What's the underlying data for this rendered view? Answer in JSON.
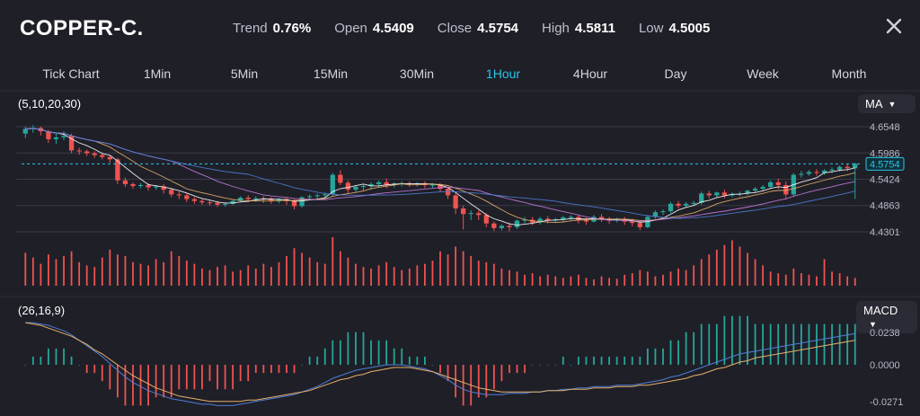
{
  "header": {
    "symbol": "COPPER-C.",
    "stats": [
      {
        "label": "Trend",
        "value": "0.76%"
      },
      {
        "label": "Open",
        "value": "4.5409"
      },
      {
        "label": "Close",
        "value": "4.5754"
      },
      {
        "label": "High",
        "value": "4.5811"
      },
      {
        "label": "Low",
        "value": "4.5005"
      }
    ],
    "close_icon": "close-icon"
  },
  "timeframes": [
    "Tick Chart",
    "1Min",
    "5Min",
    "15Min",
    "30Min",
    "1Hour",
    "4Hour",
    "Day",
    "Week",
    "Month"
  ],
  "active_timeframe": "1Hour",
  "main_indicator": {
    "params": "(5,10,20,30)",
    "selected": "MA"
  },
  "sub_indicator": {
    "params": "(26,16,9)",
    "selected": "MACD"
  },
  "colors": {
    "up": "#26a69a",
    "down": "#ef5350",
    "accent": "#2bc4e8",
    "macd_line": "#4e7fd6",
    "signal_line": "#e6b06b"
  },
  "chart_data": [
    {
      "type": "candlestick",
      "price_axis_ticks": [
        "4.6548",
        "4.5986",
        "4.5424",
        "4.4863",
        "4.4301"
      ],
      "ylim": [
        4.4301,
        4.6548
      ],
      "current_price": "4.5754",
      "ma_periods": [
        5,
        10,
        20,
        30
      ],
      "candles": [
        [
          4.64,
          4.655,
          4.65,
          4.63
        ],
        [
          4.65,
          4.658,
          4.652,
          4.642
        ],
        [
          4.652,
          4.655,
          4.645,
          4.636
        ],
        [
          4.645,
          4.648,
          4.628,
          4.62
        ],
        [
          4.628,
          4.64,
          4.632,
          4.618
        ],
        [
          4.632,
          4.645,
          4.635,
          4.626
        ],
        [
          4.635,
          4.64,
          4.604,
          4.598
        ],
        [
          4.604,
          4.61,
          4.602,
          4.595
        ],
        [
          4.602,
          4.606,
          4.598,
          4.592
        ],
        [
          4.598,
          4.602,
          4.594,
          4.588
        ],
        [
          4.594,
          4.598,
          4.59,
          4.585
        ],
        [
          4.59,
          4.594,
          4.585,
          4.578
        ],
        [
          4.585,
          4.588,
          4.54,
          4.532
        ],
        [
          4.54,
          4.546,
          4.532,
          4.526
        ],
        [
          4.532,
          4.536,
          4.528,
          4.522
        ],
        [
          4.528,
          4.534,
          4.53,
          4.523
        ],
        [
          4.53,
          4.534,
          4.525,
          4.518
        ],
        [
          4.525,
          4.53,
          4.527,
          4.52
        ],
        [
          4.527,
          4.532,
          4.52,
          4.512
        ],
        [
          4.52,
          4.524,
          4.51,
          4.504
        ],
        [
          4.51,
          4.516,
          4.508,
          4.5
        ],
        [
          4.508,
          4.512,
          4.5,
          4.494
        ],
        [
          4.5,
          4.504,
          4.496,
          4.49
        ],
        [
          4.496,
          4.5,
          4.493,
          4.488
        ],
        [
          4.493,
          4.498,
          4.492,
          4.486
        ],
        [
          4.492,
          4.496,
          4.488,
          4.483
        ],
        [
          4.488,
          4.493,
          4.49,
          4.484
        ],
        [
          4.49,
          4.498,
          4.496,
          4.488
        ],
        [
          4.496,
          4.506,
          4.503,
          4.494
        ],
        [
          4.503,
          4.508,
          4.5,
          4.494
        ],
        [
          4.5,
          4.506,
          4.502,
          4.494
        ],
        [
          4.502,
          4.506,
          4.5,
          4.492
        ],
        [
          4.5,
          4.504,
          4.496,
          4.49
        ],
        [
          4.496,
          4.502,
          4.5,
          4.491
        ],
        [
          4.5,
          4.504,
          4.496,
          4.488
        ],
        [
          4.496,
          4.5,
          4.485,
          4.478
        ],
        [
          4.485,
          4.506,
          4.504,
          4.482
        ],
        [
          4.504,
          4.51,
          4.506,
          4.498
        ],
        [
          4.506,
          4.512,
          4.508,
          4.5
        ],
        [
          4.508,
          4.514,
          4.51,
          4.502
        ],
        [
          4.51,
          4.556,
          4.552,
          4.506
        ],
        [
          4.552,
          4.562,
          4.535,
          4.53
        ],
        [
          4.535,
          4.54,
          4.52,
          4.512
        ],
        [
          4.52,
          4.53,
          4.526,
          4.515
        ],
        [
          4.526,
          4.532,
          4.528,
          4.519
        ],
        [
          4.528,
          4.536,
          4.532,
          4.52
        ],
        [
          4.532,
          4.54,
          4.536,
          4.526
        ],
        [
          4.536,
          4.544,
          4.53,
          4.523
        ],
        [
          4.53,
          4.536,
          4.533,
          4.525
        ],
        [
          4.533,
          4.538,
          4.534,
          4.527
        ],
        [
          4.534,
          4.538,
          4.532,
          4.526
        ],
        [
          4.532,
          4.536,
          4.534,
          4.527
        ],
        [
          4.534,
          4.538,
          4.53,
          4.524
        ],
        [
          4.53,
          4.534,
          4.531,
          4.524
        ],
        [
          4.531,
          4.534,
          4.522,
          4.515
        ],
        [
          4.522,
          4.526,
          4.508,
          4.5
        ],
        [
          4.508,
          4.512,
          4.48,
          4.468
        ],
        [
          4.48,
          4.486,
          4.468,
          4.435
        ],
        [
          4.468,
          4.476,
          4.47,
          4.455
        ],
        [
          4.47,
          4.476,
          4.466,
          4.455
        ],
        [
          4.466,
          4.47,
          4.448,
          4.44
        ],
        [
          4.448,
          4.452,
          4.438,
          4.432
        ],
        [
          4.438,
          4.446,
          4.443,
          4.433
        ],
        [
          4.443,
          4.45,
          4.44,
          4.431
        ],
        [
          4.44,
          4.456,
          4.454,
          4.436
        ],
        [
          4.454,
          4.462,
          4.456,
          4.448
        ],
        [
          4.456,
          4.462,
          4.45,
          4.444
        ],
        [
          4.45,
          4.462,
          4.458,
          4.446
        ],
        [
          4.458,
          4.464,
          4.455,
          4.448
        ],
        [
          4.455,
          4.46,
          4.457,
          4.45
        ],
        [
          4.457,
          4.464,
          4.461,
          4.452
        ],
        [
          4.461,
          4.466,
          4.462,
          4.454
        ],
        [
          4.462,
          4.466,
          4.455,
          4.448
        ],
        [
          4.455,
          4.46,
          4.452,
          4.445
        ],
        [
          4.452,
          4.466,
          4.462,
          4.45
        ],
        [
          4.462,
          4.468,
          4.458,
          4.451
        ],
        [
          4.458,
          4.462,
          4.454,
          4.447
        ],
        [
          4.454,
          4.46,
          4.457,
          4.45
        ],
        [
          4.457,
          4.462,
          4.452,
          4.445
        ],
        [
          4.452,
          4.458,
          4.449,
          4.442
        ],
        [
          4.449,
          4.454,
          4.44,
          4.434
        ],
        [
          4.44,
          4.466,
          4.462,
          4.438
        ],
        [
          4.462,
          4.476,
          4.472,
          4.458
        ],
        [
          4.472,
          4.478,
          4.474,
          4.466
        ],
        [
          4.474,
          4.494,
          4.49,
          4.47
        ],
        [
          4.49,
          4.496,
          4.486,
          4.48
        ],
        [
          4.486,
          4.494,
          4.49,
          4.482
        ],
        [
          4.49,
          4.496,
          4.492,
          4.485
        ],
        [
          4.492,
          4.516,
          4.512,
          4.488
        ],
        [
          4.512,
          4.518,
          4.508,
          4.502
        ],
        [
          4.508,
          4.516,
          4.514,
          4.503
        ],
        [
          4.514,
          4.52,
          4.508,
          4.502
        ],
        [
          4.508,
          4.514,
          4.51,
          4.504
        ],
        [
          4.51,
          4.516,
          4.512,
          4.506
        ],
        [
          4.512,
          4.52,
          4.518,
          4.508
        ],
        [
          4.518,
          4.526,
          4.522,
          4.514
        ],
        [
          4.522,
          4.53,
          4.526,
          4.517
        ],
        [
          4.526,
          4.54,
          4.536,
          4.522
        ],
        [
          4.536,
          4.544,
          4.53,
          4.522
        ],
        [
          4.53,
          4.538,
          4.51,
          4.5
        ],
        [
          4.51,
          4.556,
          4.552,
          4.506
        ],
        [
          4.552,
          4.56,
          4.554,
          4.546
        ],
        [
          4.554,
          4.562,
          4.558,
          4.55
        ],
        [
          4.558,
          4.564,
          4.556,
          4.55
        ],
        [
          4.556,
          4.564,
          4.561,
          4.552
        ],
        [
          4.561,
          4.568,
          4.563,
          4.556
        ],
        [
          4.563,
          4.572,
          4.569,
          4.559
        ],
        [
          4.569,
          4.576,
          4.566,
          4.56
        ],
        [
          4.566,
          4.578,
          4.5754,
          4.5005
        ]
      ],
      "volume": [
        42,
        36,
        28,
        40,
        34,
        38,
        44,
        30,
        26,
        24,
        36,
        46,
        40,
        38,
        30,
        28,
        26,
        34,
        30,
        44,
        38,
        32,
        28,
        22,
        20,
        24,
        26,
        18,
        20,
        26,
        22,
        28,
        24,
        30,
        38,
        48,
        42,
        36,
        30,
        28,
        62,
        44,
        36,
        28,
        24,
        22,
        26,
        30,
        24,
        20,
        22,
        26,
        28,
        32,
        44,
        40,
        50,
        44,
        38,
        32,
        30,
        28,
        22,
        20,
        18,
        14,
        16,
        12,
        14,
        12,
        10,
        12,
        14,
        10,
        8,
        12,
        10,
        9,
        14,
        16,
        20,
        18,
        12,
        14,
        18,
        22,
        20,
        26,
        34,
        40,
        46,
        52,
        58,
        50,
        42,
        34,
        26,
        18,
        16,
        14,
        22,
        16,
        14,
        12,
        34,
        18,
        16,
        12,
        10
      ]
    },
    {
      "type": "macd",
      "params": [
        26,
        16,
        9
      ],
      "axis_ticks": [
        "0.0238",
        "0.0000",
        "-0.0271"
      ],
      "ylim": [
        -0.0271,
        0.0238
      ],
      "macd": [
        0.031,
        0.031,
        0.03,
        0.029,
        0.027,
        0.025,
        0.022,
        0.018,
        0.014,
        0.01,
        0.006,
        0.001,
        -0.004,
        -0.009,
        -0.013,
        -0.016,
        -0.019,
        -0.021,
        -0.023,
        -0.025,
        -0.026,
        -0.027,
        -0.028,
        -0.029,
        -0.029,
        -0.03,
        -0.03,
        -0.03,
        -0.029,
        -0.028,
        -0.027,
        -0.026,
        -0.025,
        -0.024,
        -0.023,
        -0.022,
        -0.02,
        -0.018,
        -0.016,
        -0.013,
        -0.01,
        -0.008,
        -0.006,
        -0.004,
        -0.003,
        -0.002,
        -0.001,
        0.0,
        0.0,
        0.0,
        -0.001,
        -0.002,
        -0.003,
        -0.005,
        -0.008,
        -0.011,
        -0.015,
        -0.018,
        -0.02,
        -0.021,
        -0.022,
        -0.022,
        -0.022,
        -0.021,
        -0.021,
        -0.021,
        -0.02,
        -0.02,
        -0.019,
        -0.019,
        -0.018,
        -0.018,
        -0.017,
        -0.017,
        -0.016,
        -0.016,
        -0.016,
        -0.015,
        -0.015,
        -0.015,
        -0.014,
        -0.013,
        -0.012,
        -0.011,
        -0.009,
        -0.008,
        -0.006,
        -0.004,
        -0.002,
        0.0,
        0.002,
        0.004,
        0.006,
        0.008,
        0.009,
        0.01,
        0.011,
        0.012,
        0.013,
        0.014,
        0.015,
        0.016,
        0.017,
        0.018,
        0.019,
        0.02,
        0.021,
        0.022,
        0.023
      ],
      "signal": [
        0.031,
        0.03,
        0.029,
        0.027,
        0.025,
        0.023,
        0.021,
        0.018,
        0.015,
        0.011,
        0.008,
        0.004,
        0.0,
        -0.004,
        -0.008,
        -0.011,
        -0.014,
        -0.017,
        -0.019,
        -0.021,
        -0.023,
        -0.024,
        -0.025,
        -0.026,
        -0.027,
        -0.027,
        -0.027,
        -0.027,
        -0.027,
        -0.026,
        -0.026,
        -0.025,
        -0.024,
        -0.023,
        -0.022,
        -0.021,
        -0.02,
        -0.019,
        -0.017,
        -0.015,
        -0.013,
        -0.011,
        -0.01,
        -0.008,
        -0.007,
        -0.005,
        -0.004,
        -0.003,
        -0.002,
        -0.002,
        -0.002,
        -0.003,
        -0.004,
        -0.005,
        -0.007,
        -0.009,
        -0.011,
        -0.013,
        -0.015,
        -0.017,
        -0.018,
        -0.019,
        -0.02,
        -0.02,
        -0.02,
        -0.02,
        -0.02,
        -0.02,
        -0.019,
        -0.019,
        -0.019,
        -0.018,
        -0.018,
        -0.018,
        -0.017,
        -0.017,
        -0.017,
        -0.016,
        -0.016,
        -0.016,
        -0.015,
        -0.015,
        -0.014,
        -0.013,
        -0.012,
        -0.011,
        -0.01,
        -0.008,
        -0.007,
        -0.005,
        -0.003,
        -0.002,
        0.0,
        0.002,
        0.003,
        0.005,
        0.006,
        0.007,
        0.008,
        0.009,
        0.01,
        0.011,
        0.012,
        0.013,
        0.014,
        0.015,
        0.016,
        0.017,
        0.018
      ]
    }
  ]
}
